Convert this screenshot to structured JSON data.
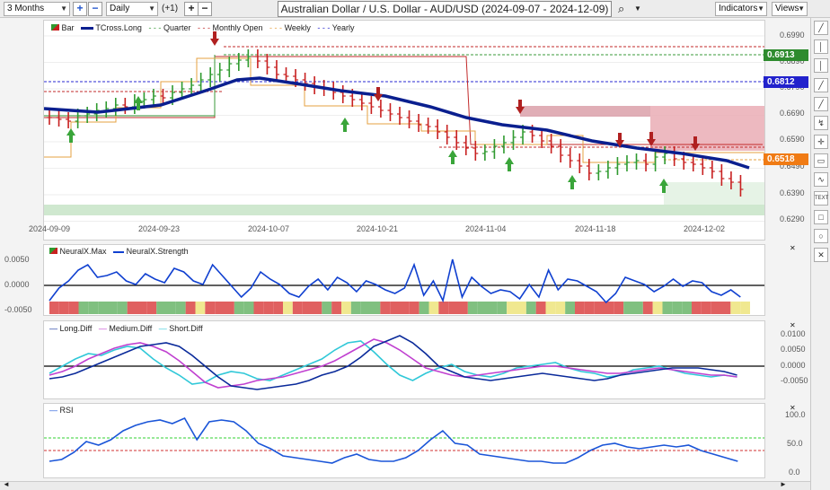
{
  "toolbar": {
    "period": "3 Months",
    "interval": "Daily",
    "offset": "(+1)",
    "title": "Australian Dollar / U.S. Dollar - AUD/USD (2024-09-07 - 2024-12-09)",
    "indicators_label": "Indicators",
    "views_label": "Views"
  },
  "main_legend": {
    "bar": "Bar",
    "tcross": "TCross.Long",
    "quarter": "Quarter",
    "monthly": "Monthly Open",
    "weekly": "Weekly",
    "yearly": "Yearly"
  },
  "price_axis": {
    "ticks": [
      "0.6990",
      "0.6890",
      "0.6790",
      "0.6690",
      "0.6590",
      "0.6490",
      "0.6390",
      "0.6290"
    ],
    "badge_quarter": "0.6913",
    "badge_yearly": "0.6812",
    "badge_weekly": "0.6518"
  },
  "date_axis": [
    "2024-09-09",
    "2024-09-23",
    "2024-10-07",
    "2024-10-21",
    "2024-11-04",
    "2024-11-18",
    "2024-12-02"
  ],
  "neural_legend": {
    "max": "NeuralX.Max",
    "strength": "NeuralX.Strength"
  },
  "neural_axis": [
    "0.0050",
    "0.0000",
    "-0.0050"
  ],
  "diff_legend": {
    "long": "Long.Diff",
    "medium": "Medium.Diff",
    "short": "Short.Diff"
  },
  "diff_axis": [
    "0.0100",
    "0.0050",
    "0.0000",
    "-0.0050"
  ],
  "rsi_legend": {
    "rsi": "RSI"
  },
  "rsi_axis": [
    "100.0",
    "50.0",
    "0.0"
  ],
  "colors": {
    "tcross": "#0a1f8f",
    "quarter": "#3a9a3a",
    "monthly": "#c22a2a",
    "weekly": "#e6a040",
    "yearly": "#2a2ad0",
    "bull_bar": "#2f9a2f",
    "bear_bar": "#c82020",
    "neural": "#1040d0",
    "long_diff": "#0a2a9a",
    "medium_diff": "#c040d0",
    "short_diff": "#30c8d8",
    "rsi": "#1a55d8"
  },
  "icons": [
    "minus-icon",
    "vertical-line-icon",
    "horizontal-line-icon",
    "trend-line-icon",
    "cross-icon",
    "measure-icon",
    "comment-icon",
    "wave-icon",
    "text-icon",
    "rectangle-icon",
    "circle-icon",
    "close-icon",
    "search-icon"
  ]
}
